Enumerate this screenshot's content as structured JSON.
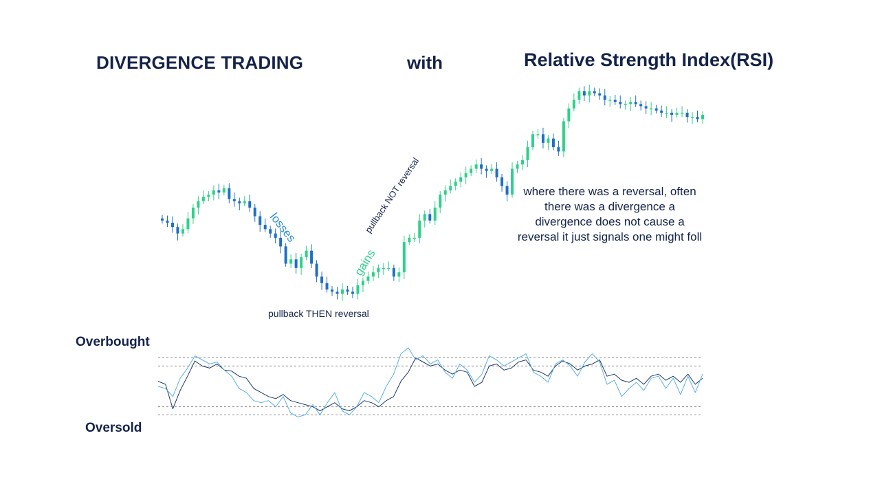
{
  "header": {
    "title_left": "DIVERGENCE TRADING",
    "title_mid": "with",
    "title_right": "Relative Strength Index(RSI)"
  },
  "note": {
    "lines": [
      "where there was a reversal, often",
      "there was a divergence a",
      "divergence does not cause a",
      "reversal it just signals one might foll"
    ]
  },
  "annotations": {
    "losses": "losses",
    "gains": "gains",
    "pullback_then_reversal": "pullback THEN reversal",
    "pullback_not_reversal": "pullback NOT reversal"
  },
  "levels": {
    "overbought": "Overbought",
    "oversold": "Oversold"
  },
  "colors": {
    "up": "#2ed18a",
    "down": "#1f6fc4",
    "rsi_light": "#5aaee8",
    "rsi_dark": "#1c3766",
    "level_line": "#8a8a8a",
    "text": "#14234a"
  },
  "chart_data": [
    {
      "type": "candlestick",
      "title": "",
      "xlabel": "",
      "ylabel": "",
      "ylim": [
        0,
        100
      ],
      "grid": false,
      "close": [
        56,
        55,
        53,
        50,
        52,
        57,
        62,
        65,
        67,
        68,
        70,
        69,
        71,
        66,
        65,
        64,
        65,
        62,
        58,
        54,
        52,
        50,
        48,
        44,
        36,
        38,
        34,
        39,
        42,
        36,
        30,
        27,
        24,
        23,
        22,
        24,
        23,
        22,
        26,
        28,
        30,
        32,
        34,
        34,
        34,
        30,
        32,
        46,
        48,
        48,
        56,
        59,
        56,
        62,
        68,
        70,
        72,
        74,
        76,
        78,
        80,
        82,
        80,
        79,
        80,
        76,
        72,
        68,
        80,
        82,
        84,
        90,
        96,
        96,
        92,
        94,
        90,
        88,
        102,
        108,
        112,
        116,
        114,
        116,
        115,
        114,
        112,
        112,
        111,
        110,
        110,
        111,
        110,
        109,
        108,
        108,
        107,
        106,
        106,
        105,
        106,
        106,
        104,
        104,
        103,
        105
      ]
    },
    {
      "type": "line",
      "title": "",
      "xlabel": "",
      "ylabel": "",
      "ylim": [
        0,
        100
      ],
      "grid": false,
      "levels": [
        78,
        70,
        30,
        22
      ],
      "series": [
        {
          "values": [
            55,
            52,
            28,
            46,
            60,
            75,
            70,
            68,
            72,
            66,
            65,
            60,
            58,
            48,
            44,
            40,
            38,
            42,
            36,
            34,
            32,
            30,
            26,
            30,
            34,
            28,
            26,
            30,
            36,
            34,
            30,
            36,
            40,
            55,
            64,
            78,
            74,
            70,
            72,
            66,
            62,
            66,
            64,
            50,
            54,
            70,
            72,
            66,
            68,
            74,
            76,
            66,
            64,
            60,
            70,
            75,
            72,
            66,
            70,
            72,
            76,
            60,
            62,
            56,
            54,
            58,
            52,
            60,
            62,
            56,
            60,
            54,
            62,
            52,
            58
          ]
        },
        {
          "values": [
            50,
            48,
            40,
            58,
            68,
            80,
            76,
            72,
            74,
            66,
            60,
            48,
            44,
            36,
            34,
            36,
            30,
            40,
            24,
            20,
            22,
            32,
            22,
            34,
            44,
            26,
            22,
            30,
            44,
            40,
            34,
            50,
            62,
            82,
            88,
            76,
            80,
            72,
            76,
            64,
            58,
            72,
            66,
            54,
            62,
            80,
            76,
            70,
            74,
            78,
            82,
            64,
            60,
            54,
            72,
            76,
            70,
            60,
            74,
            82,
            74,
            52,
            56,
            40,
            48,
            54,
            46,
            58,
            60,
            48,
            58,
            42,
            60,
            44,
            62
          ]
        }
      ]
    }
  ]
}
